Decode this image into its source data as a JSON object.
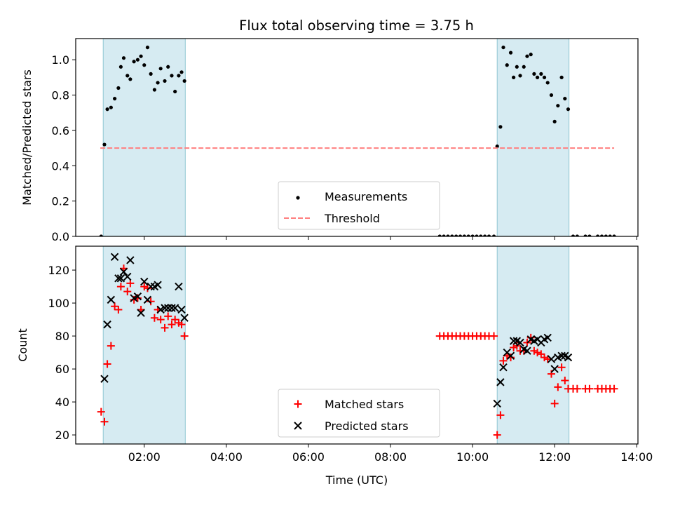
{
  "title": "Flux total observing time = 3.75 h",
  "chart_data": [
    {
      "type": "scatter",
      "panel": "top",
      "ylabel": "Matched/Predicted stars",
      "xlabel": "",
      "ylim": [
        0,
        1.12
      ],
      "yticks": [
        0.0,
        0.2,
        0.4,
        0.6,
        0.8,
        1.0
      ],
      "ytick_labels": [
        "0.0",
        "0.2",
        "0.4",
        "0.6",
        "0.8",
        "1.0"
      ],
      "xlim": [
        0.33,
        14.03
      ],
      "shaded_intervals": [
        [
          1.0,
          3.0
        ],
        [
          10.6,
          12.35
        ]
      ],
      "series": [
        {
          "name": "Measurements",
          "marker": "dot",
          "color": "#000000",
          "x": [
            0.95,
            1.03,
            1.1,
            1.19,
            1.28,
            1.37,
            1.43,
            1.5,
            1.59,
            1.66,
            1.75,
            1.84,
            1.92,
            2.0,
            2.08,
            2.16,
            2.25,
            2.33,
            2.4,
            2.5,
            2.58,
            2.67,
            2.75,
            2.84,
            2.91,
            2.98,
            9.2,
            9.3,
            9.4,
            9.5,
            9.6,
            9.7,
            9.8,
            9.9,
            10.0,
            10.1,
            10.2,
            10.3,
            10.4,
            10.52,
            10.6,
            10.68,
            10.75,
            10.84,
            10.93,
            11.0,
            11.08,
            11.16,
            11.25,
            11.33,
            11.42,
            11.5,
            11.58,
            11.67,
            11.75,
            11.83,
            11.92,
            12.0,
            12.08,
            12.17,
            12.25,
            12.33,
            12.45,
            12.55,
            12.75,
            12.85,
            13.05,
            13.15,
            13.25,
            13.35,
            13.45
          ],
          "y": [
            0.0,
            0.52,
            0.72,
            0.73,
            0.78,
            0.84,
            0.96,
            1.01,
            0.91,
            0.89,
            0.99,
            1.0,
            1.02,
            0.97,
            1.07,
            0.92,
            0.83,
            0.87,
            0.95,
            0.88,
            0.96,
            0.91,
            0.82,
            0.91,
            0.93,
            0.88,
            0.0,
            0.0,
            0.0,
            0.0,
            0.0,
            0.0,
            0.0,
            0.0,
            0.0,
            0.0,
            0.0,
            0.0,
            0.0,
            0.0,
            0.51,
            0.62,
            1.07,
            0.97,
            1.04,
            0.9,
            0.96,
            0.91,
            0.96,
            1.02,
            1.03,
            0.92,
            0.9,
            0.92,
            0.9,
            0.87,
            0.8,
            0.65,
            0.74,
            0.9,
            0.78,
            0.72,
            0.0,
            0.0,
            0.0,
            0.0,
            0.0,
            0.0,
            0.0,
            0.0,
            0.0
          ]
        },
        {
          "name": "Threshold",
          "style": "dashed",
          "color": "#ff7f7f",
          "x": [
            0.93,
            13.45
          ],
          "y": [
            0.5,
            0.5
          ]
        }
      ],
      "legend_position": "lower center"
    },
    {
      "type": "scatter",
      "panel": "bottom",
      "ylabel": "Count",
      "xlabel": "Time (UTC)",
      "ylim": [
        14.5,
        134.5
      ],
      "yticks": [
        20,
        40,
        60,
        80,
        100,
        120
      ],
      "ytick_labels": [
        "20",
        "40",
        "60",
        "80",
        "100",
        "120"
      ],
      "xlim": [
        0.33,
        14.03
      ],
      "xticks": [
        2,
        4,
        6,
        8,
        10,
        12,
        14
      ],
      "xtick_labels": [
        "02:00",
        "04:00",
        "06:00",
        "08:00",
        "10:00",
        "12:00",
        "14:00"
      ],
      "shaded_intervals": [
        [
          1.0,
          3.0
        ],
        [
          10.6,
          12.35
        ]
      ],
      "series": [
        {
          "name": "Matched stars",
          "marker": "plus",
          "color": "#ff0000",
          "x": [
            0.95,
            1.03,
            1.1,
            1.19,
            1.28,
            1.37,
            1.43,
            1.5,
            1.59,
            1.66,
            1.75,
            1.84,
            1.92,
            2.0,
            2.08,
            2.16,
            2.25,
            2.33,
            2.4,
            2.5,
            2.58,
            2.67,
            2.75,
            2.84,
            2.91,
            2.98,
            9.2,
            9.3,
            9.4,
            9.5,
            9.6,
            9.7,
            9.8,
            9.9,
            10.0,
            10.1,
            10.2,
            10.3,
            10.4,
            10.52,
            10.6,
            10.68,
            10.75,
            10.84,
            10.93,
            11.0,
            11.08,
            11.16,
            11.25,
            11.33,
            11.42,
            11.5,
            11.58,
            11.67,
            11.75,
            11.83,
            11.92,
            12.0,
            12.08,
            12.17,
            12.25,
            12.33,
            12.45,
            12.55,
            12.75,
            12.85,
            13.05,
            13.15,
            13.25,
            13.35,
            13.45
          ],
          "y": [
            34,
            28,
            63,
            74,
            98,
            96,
            110,
            121,
            107,
            112,
            102,
            103,
            96,
            110,
            109,
            101,
            91,
            96,
            90,
            85,
            92,
            87,
            90,
            88,
            87,
            80,
            80,
            80,
            80,
            80,
            80,
            80,
            80,
            80,
            80,
            80,
            80,
            80,
            80,
            80,
            20,
            32,
            65,
            68,
            67,
            73,
            74,
            71,
            71,
            76,
            79,
            71,
            70,
            69,
            67,
            66,
            57,
            39,
            49,
            61,
            53,
            48,
            48,
            48,
            48,
            48,
            48,
            48,
            48,
            48,
            48
          ]
        },
        {
          "name": "Predicted stars",
          "marker": "x",
          "color": "#000000",
          "x": [
            1.03,
            1.1,
            1.19,
            1.28,
            1.37,
            1.43,
            1.5,
            1.59,
            1.66,
            1.75,
            1.84,
            1.92,
            2.0,
            2.08,
            2.16,
            2.25,
            2.33,
            2.4,
            2.5,
            2.58,
            2.67,
            2.75,
            2.84,
            2.91,
            2.98,
            10.6,
            10.68,
            10.75,
            10.84,
            10.93,
            11.0,
            11.08,
            11.16,
            11.25,
            11.33,
            11.42,
            11.5,
            11.58,
            11.67,
            11.75,
            11.83,
            11.92,
            12.0,
            12.08,
            12.17,
            12.25,
            12.33
          ],
          "y": [
            54,
            87,
            102,
            128,
            115,
            115,
            119,
            116,
            126,
            103,
            104,
            94,
            113,
            102,
            110,
            110,
            111,
            96,
            97,
            97,
            97,
            97,
            110,
            96,
            91,
            39,
            52,
            61,
            70,
            68,
            77,
            77,
            76,
            72,
            71,
            78,
            77,
            78,
            76,
            78,
            79,
            66,
            60,
            67,
            68,
            68,
            67
          ]
        }
      ],
      "legend_position": "lower center"
    }
  ]
}
